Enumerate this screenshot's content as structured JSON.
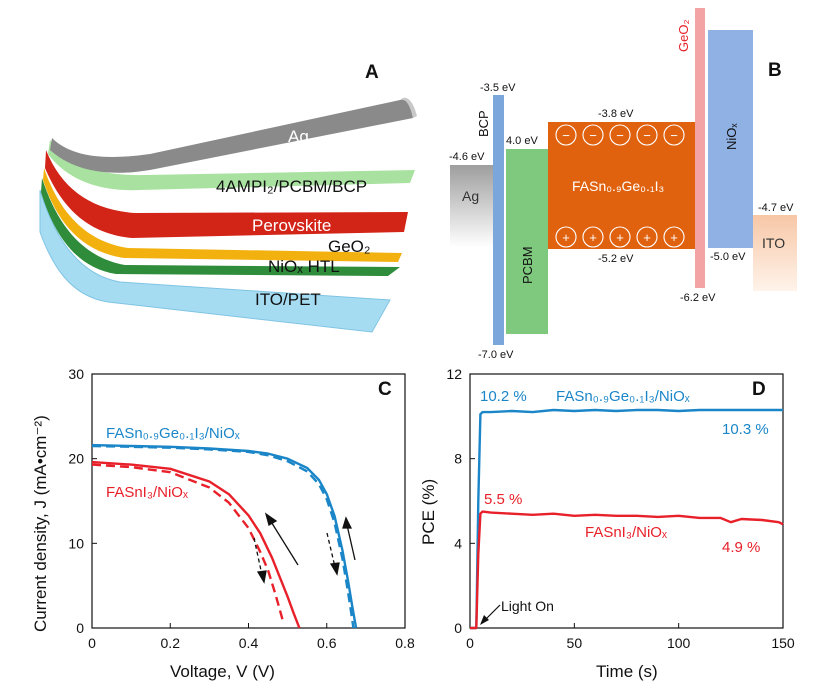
{
  "panel_a": {
    "letter": "A",
    "layers": [
      {
        "key": "ag",
        "label": "Ag",
        "color": "#8a8a8a"
      },
      {
        "key": "htl_top",
        "label": "4AMPI₂/PCBM/BCP",
        "color": "#a9e2a0"
      },
      {
        "key": "perov",
        "label": "Perovskite",
        "color": "#d32418"
      },
      {
        "key": "geo2",
        "label": "GeO₂",
        "color": "#f2b10f"
      },
      {
        "key": "nio",
        "label": "NiOₓ HTL",
        "color": "#2e8c3a"
      },
      {
        "key": "ito",
        "label": "ITO/PET",
        "color": "#a6dcf2"
      }
    ]
  },
  "panel_b": {
    "letter": "B",
    "blocks": {
      "ag": {
        "name": "Ag",
        "level": "-4.6 eV"
      },
      "bcp": {
        "name": "BCP",
        "top": "-3.5 eV",
        "bottom": "-7.0 eV"
      },
      "pcbm": {
        "name": "PCBM",
        "top": "4.0 eV"
      },
      "perov": {
        "name": "FASn₀.₉Ge₀.₁I₃",
        "top": "-3.8 eV",
        "bottom": "-5.2 eV"
      },
      "geo2": {
        "name": "GeO₂",
        "bottom": "-6.2 eV"
      },
      "nio": {
        "name": "NiOₓ",
        "bottom": "-5.0 eV"
      },
      "ito": {
        "name": "ITO",
        "level": "-4.7 eV"
      }
    },
    "charge_minus": "−",
    "charge_plus": "+"
  },
  "colors": {
    "blue": "#1a86c8",
    "red": "#e8202a",
    "perovskite_orange": "#e0620f",
    "pcbm_green": "#7fc97f",
    "bcp_blue": "#7aa6dc",
    "nio_blue": "#8fb1e3",
    "geo2_pink": "#f3a3a3",
    "ito_peach": "#f8cfb0"
  },
  "chart_data": [
    {
      "type": "line",
      "panel": "C",
      "xlabel": "Voltage, V (V)",
      "ylabel": "Current density, J (mA•cm⁻²)",
      "xlim": [
        0,
        0.8
      ],
      "ylim": [
        0,
        30
      ],
      "xticks": [
        "0",
        "0.2",
        "0.4",
        "0.6",
        "0.8"
      ],
      "yticks": [
        "0",
        "10",
        "20",
        "30"
      ],
      "series": [
        {
          "name": "FASn₀.₉Ge₀.₁I₃/NiOₓ",
          "color": "#1a86c8",
          "style": "solid",
          "x": [
            0,
            0.1,
            0.2,
            0.3,
            0.4,
            0.45,
            0.5,
            0.55,
            0.58,
            0.6,
            0.62,
            0.64,
            0.655,
            0.665,
            0.675
          ],
          "y": [
            21.6,
            21.5,
            21.4,
            21.2,
            20.9,
            20.6,
            20.0,
            18.9,
            17.5,
            15.8,
            13.2,
            9.2,
            5.4,
            2.6,
            0
          ]
        },
        {
          "name": "FASn₀.₉Ge₀.₁I₃/NiOₓ (dashed)",
          "color": "#1a86c8",
          "style": "dashed",
          "x": [
            0,
            0.1,
            0.2,
            0.3,
            0.4,
            0.45,
            0.5,
            0.55,
            0.58,
            0.6,
            0.62,
            0.64,
            0.65,
            0.66,
            0.668
          ],
          "y": [
            21.5,
            21.4,
            21.3,
            21.1,
            20.8,
            20.4,
            19.7,
            18.5,
            17.0,
            15.2,
            12.4,
            8.2,
            5.5,
            2.6,
            0
          ]
        },
        {
          "name": "FASnI₃/NiOₓ",
          "color": "#e8202a",
          "style": "solid",
          "x": [
            0,
            0.1,
            0.2,
            0.3,
            0.35,
            0.4,
            0.43,
            0.46,
            0.48,
            0.5,
            0.515,
            0.53
          ],
          "y": [
            19.6,
            19.3,
            18.8,
            17.3,
            15.8,
            13.3,
            11.2,
            8.3,
            6.0,
            3.7,
            1.8,
            0
          ]
        },
        {
          "name": "FASnI₃/NiOₓ (dashed)",
          "color": "#e8202a",
          "style": "dashed",
          "x": [
            0,
            0.1,
            0.2,
            0.3,
            0.35,
            0.4,
            0.43,
            0.45,
            0.47,
            0.49
          ],
          "y": [
            19.3,
            19.0,
            18.4,
            16.6,
            14.8,
            11.8,
            9.0,
            6.8,
            3.8,
            0.5
          ]
        }
      ],
      "labels": {
        "blue": "FASn₀.₉Ge₀.₁I₃/NiOₓ",
        "red": "FASnI₃/NiOₓ"
      }
    },
    {
      "type": "line",
      "panel": "D",
      "xlabel": "Time (s)",
      "ylabel": "PCE (%)",
      "xlim": [
        0,
        150
      ],
      "ylim": [
        0,
        12
      ],
      "xticks": [
        "0",
        "50",
        "100",
        "150"
      ],
      "yticks": [
        "0",
        "4",
        "8",
        "12"
      ],
      "series": [
        {
          "name": "FASn₀.₉Ge₀.₁I₃/NiOₓ",
          "color": "#1a86c8",
          "x": [
            0,
            3,
            4,
            5,
            6,
            10,
            20,
            30,
            40,
            50,
            60,
            70,
            80,
            90,
            100,
            110,
            120,
            130,
            140,
            150
          ],
          "y": [
            0,
            0,
            6.0,
            10.1,
            10.2,
            10.2,
            10.25,
            10.2,
            10.3,
            10.25,
            10.3,
            10.25,
            10.3,
            10.3,
            10.25,
            10.3,
            10.3,
            10.3,
            10.3,
            10.3
          ]
        },
        {
          "name": "FASnI₃/NiOₓ",
          "color": "#e8202a",
          "x": [
            0,
            3,
            4,
            5,
            6,
            10,
            20,
            30,
            40,
            50,
            60,
            70,
            80,
            90,
            100,
            110,
            120,
            125,
            130,
            140,
            148,
            150
          ],
          "y": [
            0,
            0,
            3.5,
            5.4,
            5.5,
            5.45,
            5.4,
            5.35,
            5.4,
            5.3,
            5.35,
            5.3,
            5.3,
            5.25,
            5.3,
            5.2,
            5.2,
            5.0,
            5.15,
            5.1,
            5.0,
            4.9
          ]
        }
      ],
      "annotations": {
        "blue_start": "10.2 %",
        "blue_end": "10.3 %",
        "red_start": "5.5 %",
        "red_end": "4.9 %",
        "light_on": "Light On"
      },
      "labels": {
        "blue": "FASn₀.₉Ge₀.₁I₃/NiOₓ",
        "red": "FASnI₃/NiOₓ"
      }
    }
  ]
}
